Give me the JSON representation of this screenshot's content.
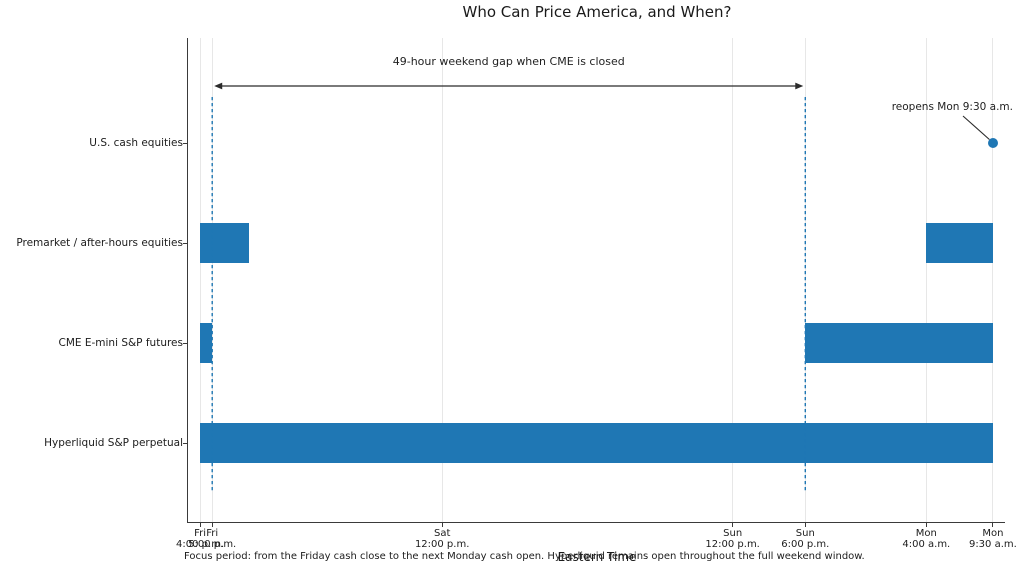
{
  "title": "Who Can Price America, and When?",
  "colors": {
    "bar": "#1f77b4",
    "dashed_line": "#1f77b4",
    "marker_dot": "#1f77b4",
    "arrow": "#2b2b2b",
    "grid": "#e7e7e7",
    "spine": "#3a3a3a"
  },
  "chart_data": {
    "type": "bar",
    "subtype": "broken-bar market-hours timeline (gantt)",
    "title": "Who Can Price America, and When?",
    "xlabel": "Eastern Time",
    "x_unit": "hours after Fri 4:00 p.m. ET",
    "xlim": [
      -1,
      66.5
    ],
    "grid": "vertical gridlines at each x tick",
    "categories": [
      "U.S. cash equities",
      "Premarket / after-hours equities",
      "CME E-mini S&P futures",
      "Hyperliquid S&P perpetual"
    ],
    "x_ticks": [
      {
        "hours": 0,
        "day": "Fri",
        "time": "4:00 p.m."
      },
      {
        "hours": 1,
        "day": "Fri",
        "time": "5:00 p.m."
      },
      {
        "hours": 20,
        "day": "Sat",
        "time": "12:00 p.m."
      },
      {
        "hours": 44,
        "day": "Sun",
        "time": "12:00 p.m."
      },
      {
        "hours": 50,
        "day": "Sun",
        "time": "6:00 p.m."
      },
      {
        "hours": 60,
        "day": "Mon",
        "time": "4:00 a.m."
      },
      {
        "hours": 65.5,
        "day": "Mon",
        "time": "9:30 a.m."
      }
    ],
    "series": [
      {
        "category": "U.S. cash equities",
        "open_intervals_hours": []
      },
      {
        "category": "Premarket / after-hours equities",
        "open_intervals_hours": [
          [
            0,
            4
          ],
          [
            60,
            65.5
          ]
        ]
      },
      {
        "category": "CME E-mini S&P futures",
        "open_intervals_hours": [
          [
            0,
            1
          ],
          [
            50,
            65.5
          ]
        ]
      },
      {
        "category": "Hyperliquid S&P perpetual",
        "open_intervals_hours": [
          [
            0,
            65.5
          ]
        ]
      }
    ],
    "marker": {
      "category": "U.S. cash equities",
      "hours": 65.5,
      "label": "reopens Mon 9:30 a.m."
    },
    "gap": {
      "label": "49-hour weekend gap when CME is closed",
      "from_hours": 1,
      "to_hours": 50
    },
    "dashed_vlines_hours": [
      1,
      50
    ],
    "footnote": "Focus period: from the Friday cash close to the next Monday cash open. Hyperliquid remains open throughout the full weekend window."
  }
}
